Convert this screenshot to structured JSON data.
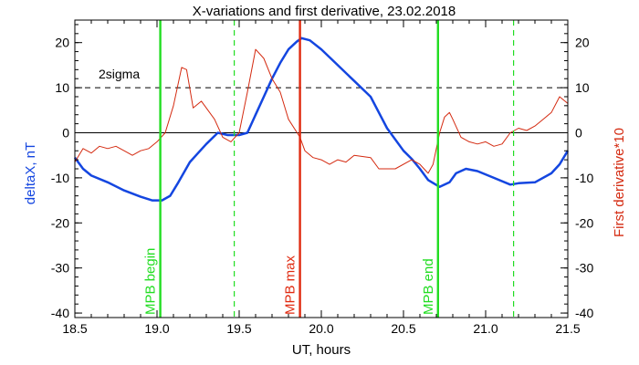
{
  "chart_data": {
    "type": "line",
    "title": "X-variations and first derivative, 23.02.2018",
    "xlabel": "UT, hours",
    "ylabel_left": "deltaX, nT",
    "ylabel_right": "First derivative*10",
    "xlim": [
      18.5,
      21.5
    ],
    "ylim": [
      -41,
      25
    ],
    "xticks": [
      {
        "value": 18.5,
        "label": "18.5"
      },
      {
        "value": 19.0,
        "label": "19.0"
      },
      {
        "value": 19.5,
        "label": "19.5"
      },
      {
        "value": 20.0,
        "label": "20.0"
      },
      {
        "value": 20.5,
        "label": "20.5"
      },
      {
        "value": 21.0,
        "label": "21.0"
      },
      {
        "value": 21.5,
        "label": "21.5"
      }
    ],
    "yticks": [
      {
        "value": 20,
        "label": "20"
      },
      {
        "value": 10,
        "label": "10"
      },
      {
        "value": 0,
        "label": "0"
      },
      {
        "value": -10,
        "label": "-10"
      },
      {
        "value": -20,
        "label": "-20"
      },
      {
        "value": -30,
        "label": "-30"
      },
      {
        "value": -40,
        "label": "-40"
      }
    ],
    "colors": {
      "deltaX": "#1446e0",
      "derivative": "#d42a10",
      "mpb_begin_end": "#22dd22",
      "mpb_max": "#e02a10",
      "axis": "#000000"
    },
    "threshold": {
      "label": "2sigma",
      "value": 10
    },
    "series": [
      {
        "name": "deltaX, nT",
        "color": "#1446e0",
        "points": [
          [
            18.5,
            -5.5
          ],
          [
            18.55,
            -8
          ],
          [
            18.6,
            -9.5
          ],
          [
            18.7,
            -11
          ],
          [
            18.8,
            -12.8
          ],
          [
            18.9,
            -14.2
          ],
          [
            18.97,
            -15
          ],
          [
            19.03,
            -15
          ],
          [
            19.08,
            -14
          ],
          [
            19.13,
            -11
          ],
          [
            19.2,
            -6.5
          ],
          [
            19.25,
            -4.5
          ],
          [
            19.3,
            -2.5
          ],
          [
            19.37,
            0
          ],
          [
            19.43,
            -0.5
          ],
          [
            19.5,
            -0.5
          ],
          [
            19.55,
            0
          ],
          [
            19.6,
            4
          ],
          [
            19.65,
            8
          ],
          [
            19.7,
            12
          ],
          [
            19.75,
            15.5
          ],
          [
            19.8,
            18.5
          ],
          [
            19.85,
            20.2
          ],
          [
            19.88,
            21
          ],
          [
            19.93,
            20.5
          ],
          [
            20.0,
            18.5
          ],
          [
            20.1,
            15
          ],
          [
            20.2,
            11.5
          ],
          [
            20.3,
            8
          ],
          [
            20.4,
            1
          ],
          [
            20.5,
            -4
          ],
          [
            20.55,
            -5.8
          ],
          [
            20.6,
            -8
          ],
          [
            20.65,
            -10.5
          ],
          [
            20.72,
            -12
          ],
          [
            20.78,
            -11
          ],
          [
            20.82,
            -9
          ],
          [
            20.88,
            -8
          ],
          [
            20.95,
            -8.5
          ],
          [
            21.05,
            -10
          ],
          [
            21.15,
            -11.5
          ],
          [
            21.2,
            -11.2
          ],
          [
            21.3,
            -11
          ],
          [
            21.4,
            -9
          ],
          [
            21.45,
            -7
          ],
          [
            21.5,
            -4
          ]
        ]
      },
      {
        "name": "First derivative*10",
        "color": "#d42a10",
        "points": [
          [
            18.5,
            -6.5
          ],
          [
            18.55,
            -3.5
          ],
          [
            18.6,
            -4.5
          ],
          [
            18.65,
            -3
          ],
          [
            18.7,
            -3.5
          ],
          [
            18.75,
            -3
          ],
          [
            18.8,
            -4
          ],
          [
            18.85,
            -5
          ],
          [
            18.9,
            -4
          ],
          [
            18.95,
            -3.5
          ],
          [
            19.0,
            -2
          ],
          [
            19.05,
            0
          ],
          [
            19.1,
            6
          ],
          [
            19.15,
            14.5
          ],
          [
            19.18,
            14
          ],
          [
            19.22,
            5.5
          ],
          [
            19.27,
            7
          ],
          [
            19.3,
            5.5
          ],
          [
            19.35,
            3
          ],
          [
            19.4,
            -1
          ],
          [
            19.45,
            -2
          ],
          [
            19.5,
            0
          ],
          [
            19.55,
            9
          ],
          [
            19.6,
            18.5
          ],
          [
            19.65,
            16.5
          ],
          [
            19.7,
            12
          ],
          [
            19.75,
            9
          ],
          [
            19.8,
            3
          ],
          [
            19.87,
            -1
          ],
          [
            19.9,
            -4
          ],
          [
            19.95,
            -5.5
          ],
          [
            20.0,
            -6
          ],
          [
            20.05,
            -7
          ],
          [
            20.1,
            -6
          ],
          [
            20.15,
            -6.5
          ],
          [
            20.2,
            -5
          ],
          [
            20.3,
            -5.5
          ],
          [
            20.35,
            -8
          ],
          [
            20.45,
            -8
          ],
          [
            20.55,
            -6
          ],
          [
            20.6,
            -7
          ],
          [
            20.65,
            -9
          ],
          [
            20.68,
            -7
          ],
          [
            20.72,
            0
          ],
          [
            20.75,
            3.5
          ],
          [
            20.78,
            4.5
          ],
          [
            20.8,
            3
          ],
          [
            20.85,
            -1
          ],
          [
            20.9,
            -2
          ],
          [
            20.95,
            -2.5
          ],
          [
            21.0,
            -2
          ],
          [
            21.05,
            -3
          ],
          [
            21.1,
            -2.5
          ],
          [
            21.15,
            0
          ],
          [
            21.2,
            1
          ],
          [
            21.25,
            0.5
          ],
          [
            21.3,
            1.5
          ],
          [
            21.35,
            3
          ],
          [
            21.4,
            4.5
          ],
          [
            21.45,
            8
          ],
          [
            21.5,
            6.5
          ]
        ]
      }
    ],
    "markers": [
      {
        "x": 19.02,
        "label": "MPB begin",
        "color": "#22dd22",
        "style": "solid"
      },
      {
        "x": 19.47,
        "label": "",
        "color": "#22dd22",
        "style": "dashed"
      },
      {
        "x": 19.87,
        "label": "MPB max",
        "color": "#e02a10",
        "style": "solid"
      },
      {
        "x": 20.71,
        "label": "MPB end",
        "color": "#22dd22",
        "style": "solid"
      },
      {
        "x": 21.17,
        "label": "",
        "color": "#22dd22",
        "style": "dashed"
      }
    ]
  }
}
